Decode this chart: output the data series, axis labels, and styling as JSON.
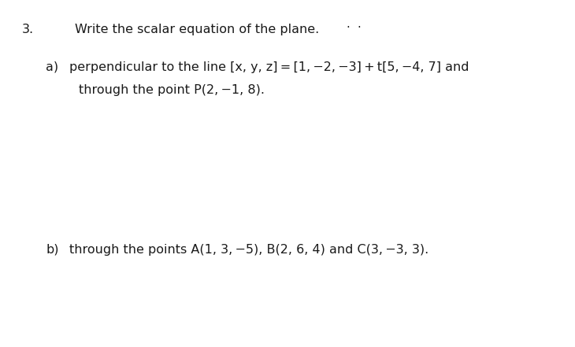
{
  "background_color": "#ffffff",
  "figsize": [
    7.3,
    4.41
  ],
  "dpi": 100,
  "question_number": "3.",
  "title_text": "Write the scalar equation of the plane.",
  "dots_text": "·  ·",
  "part_a_label": "a)",
  "part_a_line1": "perpendicular to the line [x, y, z] = [1, −2, −3] + t[5, −4, 7] and",
  "part_a_line2": "through the point P(2, −1, 8).",
  "part_b_label": "b)",
  "part_b_line1": "through the points A(1, 3, −5), B(2, 6, 4) and C(3, −3, 3).",
  "font_family": "DejaVu Sans",
  "body_fontsize": 11.5,
  "text_color": "#1a1a1a"
}
